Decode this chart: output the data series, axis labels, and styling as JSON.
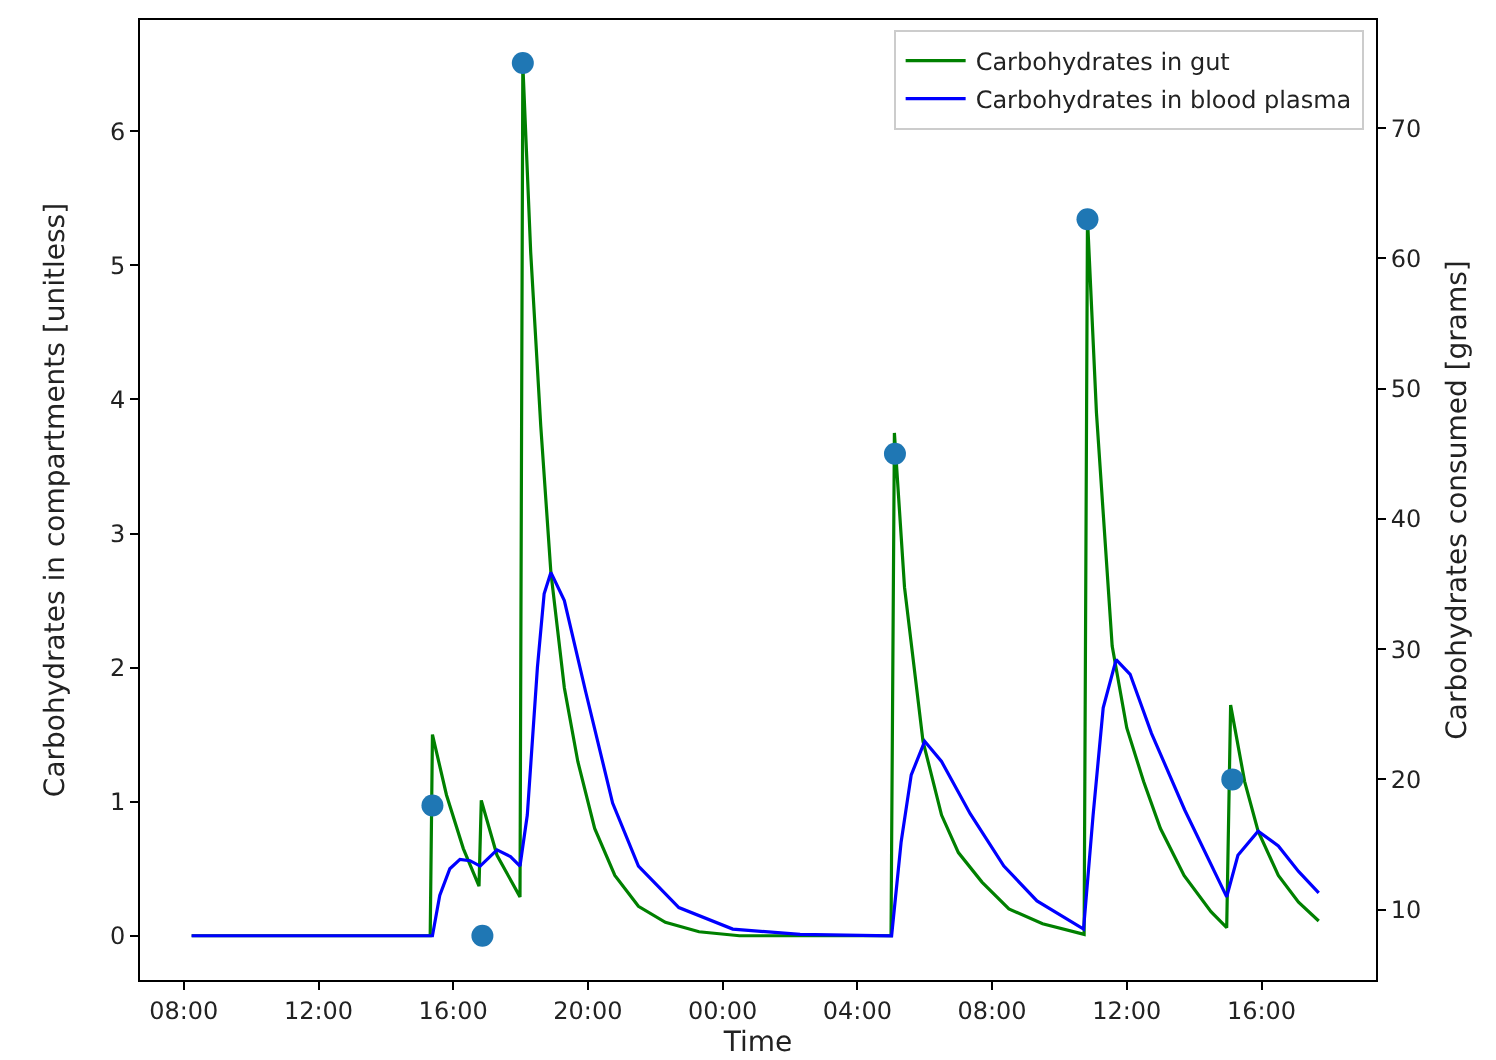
{
  "chart_data": {
    "type": "line",
    "xlabel": "Time",
    "ylabel": "Carbohydrates in compartments [unitless]",
    "y2label": "Carbohydrates consumed [grams]",
    "xlim": [
      "--01-01T06:42",
      "--01-02T19:24"
    ],
    "xticks": [
      {
        "value": "--01-01T08:00",
        "label": "08:00"
      },
      {
        "value": "--01-01T12:00",
        "label": "12:00"
      },
      {
        "value": "--01-01T16:00",
        "label": "16:00"
      },
      {
        "value": "--01-01T20:00",
        "label": "20:00"
      },
      {
        "value": "--01-02T00:00",
        "label": "00:00"
      },
      {
        "value": "--01-02T04:00",
        "label": "04:00"
      },
      {
        "value": "--01-02T08:00",
        "label": "08:00"
      },
      {
        "value": "--01-02T12:00",
        "label": "12:00"
      },
      {
        "value": "--01-02T16:00",
        "label": "16:00"
      }
    ],
    "ylim": [
      -0.33,
      6.83
    ],
    "yticks": [
      0,
      1,
      2,
      3,
      4,
      5,
      6
    ],
    "y2lim": [
      4.6,
      78.3
    ],
    "y2ticks": [
      10,
      20,
      30,
      40,
      50,
      60,
      70
    ],
    "grid": false,
    "legend": "top right",
    "line_style": "solid",
    "series": [
      {
        "name": "Carbohydrates in gut",
        "color": "#008000",
        "marker": "none",
        "x": [
          "--01-01T08:14",
          "--01-01T15:19",
          "--01-01T15:23",
          "--01-01T15:48",
          "--01-01T16:18",
          "--01-01T16:46",
          "--01-01T16:50",
          "--01-01T17:18",
          "--01-01T17:59",
          "--01-01T18:04",
          "--01-01T18:18",
          "--01-01T18:36",
          "--01-01T18:54",
          "--01-01T19:18",
          "--01-01T19:42",
          "--01-01T20:12",
          "--01-01T20:48",
          "--01-01T21:30",
          "--01-01T22:18",
          "--01-01T23:18",
          "--01-02T00:30",
          "--01-02T02:00",
          "--01-02T05:00",
          "--01-02T05:06",
          "--01-02T05:24",
          "--01-02T05:57",
          "--01-02T06:30",
          "--01-02T07:00",
          "--01-02T07:42",
          "--01-02T08:30",
          "--01-02T09:30",
          "--01-02T10:44",
          "--01-02T10:50",
          "--01-02T11:06",
          "--01-02T11:34",
          "--01-02T12:00",
          "--01-02T12:30",
          "--01-02T13:00",
          "--01-02T13:42",
          "--01-02T14:30",
          "--01-02T14:58",
          "--01-02T15:05",
          "--01-02T15:30",
          "--01-02T15:54",
          "--01-02T16:30",
          "--01-02T17:06",
          "--01-02T17:42"
        ],
        "values": [
          0,
          0,
          1.5,
          1.05,
          0.65,
          0.37,
          1.01,
          0.6,
          0.29,
          6.5,
          5.1,
          3.8,
          2.71,
          1.85,
          1.3,
          0.8,
          0.45,
          0.22,
          0.1,
          0.03,
          0,
          0,
          0,
          3.75,
          2.6,
          1.45,
          0.9,
          0.62,
          0.4,
          0.2,
          0.09,
          0.01,
          5.35,
          3.9,
          2.16,
          1.55,
          1.15,
          0.8,
          0.45,
          0.18,
          0.06,
          1.72,
          1.15,
          0.78,
          0.45,
          0.25,
          0.11
        ]
      },
      {
        "name": "Carbohydrates in blood plasma",
        "color": "#0000ff",
        "marker": "none",
        "x": [
          "--01-01T08:14",
          "--01-01T15:23",
          "--01-01T15:36",
          "--01-01T15:54",
          "--01-01T16:12",
          "--01-01T16:30",
          "--01-01T16:48",
          "--01-01T17:18",
          "--01-01T17:42",
          "--01-01T17:59",
          "--01-01T18:12",
          "--01-01T18:30",
          "--01-01T18:42",
          "--01-01T18:54",
          "--01-01T19:18",
          "--01-01T19:56",
          "--01-01T20:44",
          "--01-01T21:30",
          "--01-01T22:42",
          "--01-02T00:18",
          "--01-02T02:18",
          "--01-02T05:01",
          "--01-02T05:18",
          "--01-02T05:36",
          "--01-02T06:00",
          "--01-02T06:30",
          "--01-02T07:21",
          "--01-02T08:21",
          "--01-02T09:20",
          "--01-02T10:43",
          "--01-02T11:00",
          "--01-02T11:18",
          "--01-02T11:41",
          "--01-02T12:06",
          "--01-02T12:44",
          "--01-02T13:43",
          "--01-02T14:58",
          "--01-02T15:18",
          "--01-02T15:54",
          "--01-02T16:30",
          "--01-02T17:06",
          "--01-02T17:42"
        ],
        "values": [
          0,
          0,
          0.3,
          0.5,
          0.57,
          0.56,
          0.52,
          0.64,
          0.59,
          0.52,
          0.9,
          2.0,
          2.55,
          2.71,
          2.5,
          1.82,
          0.99,
          0.52,
          0.21,
          0.05,
          0.01,
          0,
          0.7,
          1.2,
          1.45,
          1.3,
          0.91,
          0.52,
          0.26,
          0.05,
          0.9,
          1.7,
          2.06,
          1.95,
          1.51,
          0.94,
          0.29,
          0.6,
          0.78,
          0.67,
          0.48,
          0.32
        ]
      },
      {
        "color": "#1f77b4",
        "type": "scatter",
        "axis": "y2",
        "marker": "circle",
        "x": [
          "--01-01T15:23",
          "--01-01T16:52",
          "--01-01T18:04",
          "--01-02T05:07",
          "--01-02T10:50",
          "--01-02T15:08"
        ],
        "values": [
          18,
          8,
          75,
          45,
          63,
          20
        ]
      }
    ]
  }
}
